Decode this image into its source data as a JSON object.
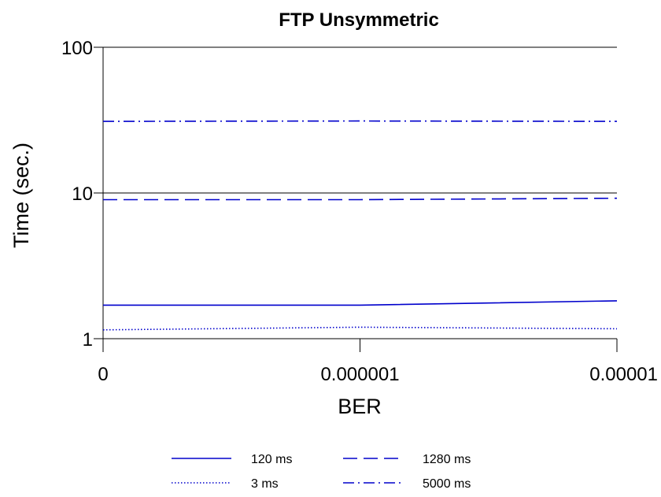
{
  "chart_data": {
    "type": "line",
    "title": "FTP Unsymmetric",
    "xlabel": "BER",
    "ylabel": "Time (sec.)",
    "x_scale": "categorical",
    "y_scale": "log",
    "ylim": [
      1,
      100
    ],
    "x_ticks": [
      "0",
      "0.000001",
      "0.00001"
    ],
    "y_ticks": [
      "1",
      "10",
      "100"
    ],
    "grid": "horizontal major",
    "legend_position": "bottom",
    "series": [
      {
        "name": "120 ms",
        "style": "solid",
        "color": "#0000cc",
        "values": [
          1.7,
          1.7,
          1.82
        ]
      },
      {
        "name": "3 ms",
        "style": "dotted",
        "color": "#0000cc",
        "values": [
          1.15,
          1.2,
          1.17
        ]
      },
      {
        "name": "1280 ms",
        "style": "dashed",
        "color": "#0000cc",
        "values": [
          9.0,
          9.0,
          9.2
        ]
      },
      {
        "name": "5000 ms",
        "style": "dash-dot",
        "color": "#0000cc",
        "values": [
          31.0,
          31.2,
          31.0
        ]
      }
    ]
  }
}
